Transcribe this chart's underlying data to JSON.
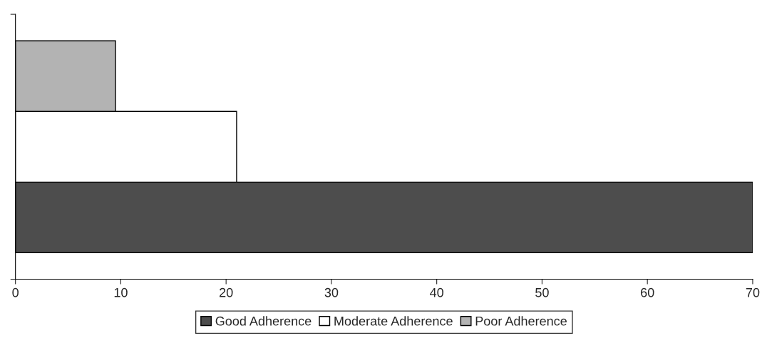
{
  "chart_data": {
    "type": "bar",
    "orientation": "horizontal",
    "categories": [
      null
    ],
    "series": [
      {
        "name": "Good Adherence",
        "color": "#4d4d4d",
        "values": [
          70
        ]
      },
      {
        "name": "Moderate Adherence",
        "color": "#ffffff",
        "values": [
          21
        ]
      },
      {
        "name": "Poor Adherence",
        "color": "#b3b3b3",
        "values": [
          9.5
        ]
      }
    ],
    "xlim": [
      0,
      70
    ],
    "xticks": [
      0,
      10,
      20,
      30,
      40,
      50,
      60,
      70
    ],
    "tick_labels": "x",
    "grid": false,
    "legend": "bottom"
  }
}
